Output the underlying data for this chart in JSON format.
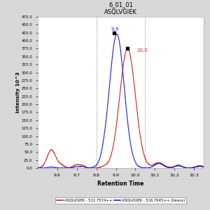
{
  "title_line1": "6_01_01",
  "title_line2": "ASQLVGIEK",
  "xlabel": "Retention Time",
  "ylabel": "Intensity 10^3",
  "xlim": [
    9.5,
    10.35
  ],
  "ylim": [
    0,
    475
  ],
  "yticks": [
    0,
    25,
    50,
    75,
    100,
    125,
    150,
    175,
    200,
    225,
    250,
    275,
    300,
    325,
    350,
    375,
    400,
    425,
    450,
    475
  ],
  "xticks": [
    9.6,
    9.7,
    9.8,
    9.9,
    10.0,
    10.1,
    10.2,
    10.3
  ],
  "vlines": [
    9.8,
    10.05
  ],
  "peak_label_blue": "9.9",
  "peak_label_red": "10.0",
  "peak_x_blue": 9.905,
  "peak_y_blue": 418,
  "peak_x_red": 9.965,
  "peak_y_red": 372,
  "legend_red_label": "ASQLVGIEK - 512.7574++",
  "legend_blue_label": "ASQLVGIEK - 516.7645++ (heavy)",
  "color_red": "#cc2222",
  "color_blue": "#1a1aee",
  "background_color": "#d8d8d8",
  "plot_bg_color": "#ffffff",
  "vline_color": "#888888"
}
